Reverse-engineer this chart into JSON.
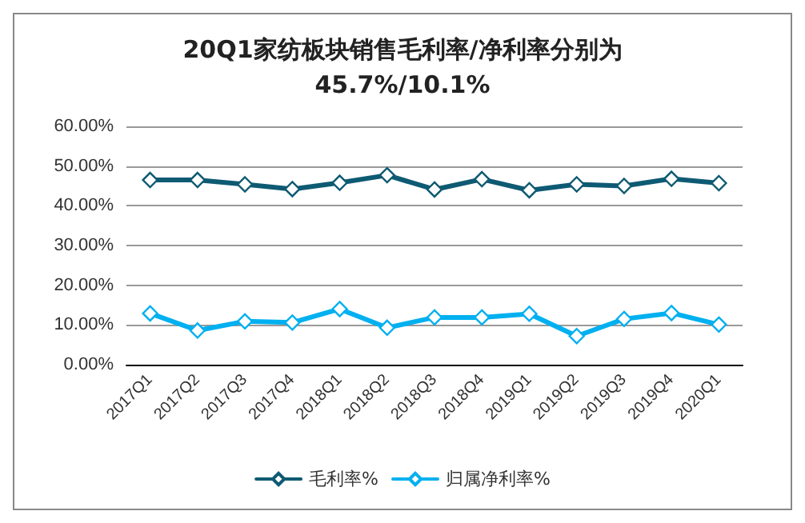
{
  "chart_data": {
    "type": "line",
    "title": "20Q1家纺板块销售毛利率/净利率分别为\n45.7%/10.1%",
    "categories": [
      "2017Q1",
      "2017Q2",
      "2017Q3",
      "2017Q4",
      "2018Q1",
      "2018Q2",
      "2018Q3",
      "2018Q4",
      "2019Q1",
      "2019Q2",
      "2019Q3",
      "2019Q4",
      "2020Q1"
    ],
    "series": [
      {
        "name": "毛利率%",
        "color": "#0e5a73",
        "values": [
          46.5,
          46.5,
          45.4,
          44.2,
          45.8,
          47.7,
          44.1,
          46.7,
          43.9,
          45.4,
          45.0,
          46.8,
          45.7
        ]
      },
      {
        "name": "归属净利率%",
        "color": "#00b0f0",
        "values": [
          12.9,
          8.6,
          10.9,
          10.6,
          14.0,
          9.3,
          11.9,
          11.9,
          12.8,
          7.2,
          11.5,
          13.0,
          10.1
        ]
      }
    ],
    "ylim": [
      0,
      60
    ],
    "yticks": [
      {
        "value": 0,
        "label": "0.00%"
      },
      {
        "value": 10,
        "label": "10.00%"
      },
      {
        "value": 20,
        "label": "20.00%"
      },
      {
        "value": 30,
        "label": "30.00%"
      },
      {
        "value": 40,
        "label": "40.00%"
      },
      {
        "value": 50,
        "label": "50.00%"
      },
      {
        "value": 60,
        "label": "60.00%"
      }
    ],
    "grid": "y",
    "legend": "bottom",
    "marker": "diamond",
    "line_style": "solid"
  }
}
